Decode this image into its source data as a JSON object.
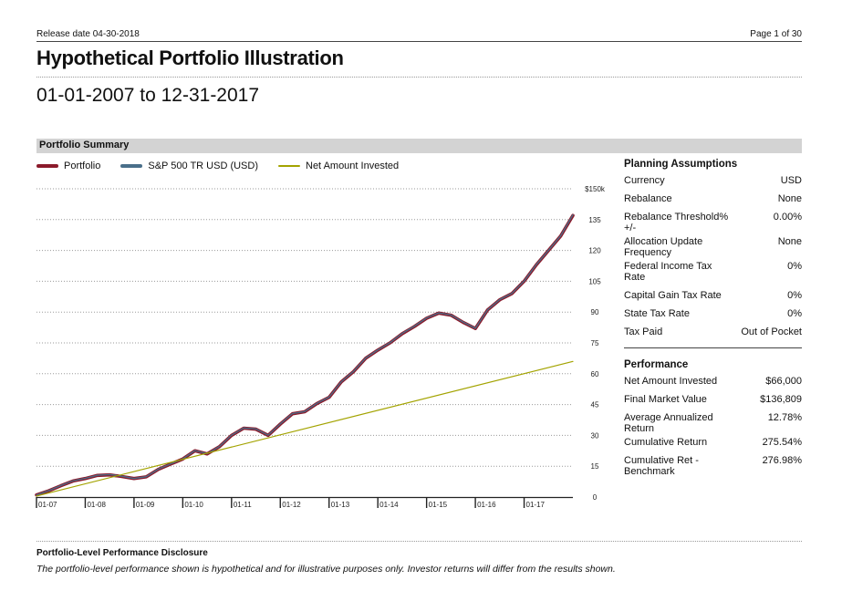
{
  "header": {
    "release": "Release date 04-30-2018",
    "page": "Page 1 of 30"
  },
  "title": "Hypothetical Portfolio Illustration",
  "subtitle": "01-01-2007 to 12-31-2017",
  "section_title": "Portfolio Summary",
  "colors": {
    "portfolio": "#8b1a2b",
    "benchmark": "#4a6f8a",
    "invested": "#a3a300",
    "section_bg": "#d3d3d3"
  },
  "legend": [
    {
      "label": "Portfolio"
    },
    {
      "label": "S&P 500 TR USD (USD)"
    },
    {
      "label": "Net Amount Invested"
    }
  ],
  "chart_data": {
    "type": "line",
    "x_tick_labels": [
      "01-07",
      "01-08",
      "01-09",
      "01-10",
      "01-11",
      "01-12",
      "01-13",
      "01-14",
      "01-15",
      "01-16",
      "01-17"
    ],
    "y_tick_labels": [
      "$150k",
      "135",
      "120",
      "105",
      "90",
      "75",
      "60",
      "45",
      "30",
      "15",
      "0"
    ],
    "ylim": [
      0,
      150
    ],
    "x_range": [
      2007.0,
      2018.0
    ],
    "series": [
      {
        "name": "Portfolio",
        "points": [
          [
            2007.0,
            1.0
          ],
          [
            2007.25,
            3.0
          ],
          [
            2007.5,
            5.5
          ],
          [
            2007.75,
            7.8
          ],
          [
            2008.0,
            9.0
          ],
          [
            2008.25,
            10.5
          ],
          [
            2008.5,
            10.8
          ],
          [
            2008.75,
            10.0
          ],
          [
            2009.0,
            9.0
          ],
          [
            2009.25,
            9.8
          ],
          [
            2009.5,
            13.5
          ],
          [
            2009.75,
            16.0
          ],
          [
            2010.0,
            18.5
          ],
          [
            2010.25,
            22.5
          ],
          [
            2010.5,
            21.0
          ],
          [
            2010.75,
            24.5
          ],
          [
            2011.0,
            30.0
          ],
          [
            2011.25,
            33.5
          ],
          [
            2011.5,
            33.0
          ],
          [
            2011.75,
            30.0
          ],
          [
            2012.0,
            35.5
          ],
          [
            2012.25,
            40.5
          ],
          [
            2012.5,
            41.5
          ],
          [
            2012.75,
            45.5
          ],
          [
            2013.0,
            48.5
          ],
          [
            2013.25,
            56.0
          ],
          [
            2013.5,
            61.0
          ],
          [
            2013.75,
            67.5
          ],
          [
            2014.0,
            71.5
          ],
          [
            2014.25,
            75.0
          ],
          [
            2014.5,
            79.5
          ],
          [
            2014.75,
            83.0
          ],
          [
            2015.0,
            87.0
          ],
          [
            2015.25,
            89.5
          ],
          [
            2015.5,
            88.5
          ],
          [
            2015.75,
            85.0
          ],
          [
            2016.0,
            82.0
          ],
          [
            2016.25,
            91.0
          ],
          [
            2016.5,
            96.0
          ],
          [
            2016.75,
            99.0
          ],
          [
            2017.0,
            105.0
          ],
          [
            2017.25,
            113.0
          ],
          [
            2017.5,
            120.0
          ],
          [
            2017.75,
            127.0
          ],
          [
            2018.0,
            137.0
          ]
        ]
      },
      {
        "name": "S&P 500 TR USD (USD)",
        "points": [
          [
            2007.0,
            1.0
          ],
          [
            2007.25,
            3.1
          ],
          [
            2007.5,
            5.6
          ],
          [
            2007.75,
            7.9
          ],
          [
            2008.0,
            9.1
          ],
          [
            2008.25,
            10.6
          ],
          [
            2008.5,
            10.9
          ],
          [
            2008.75,
            10.1
          ],
          [
            2009.0,
            9.0
          ],
          [
            2009.25,
            9.9
          ],
          [
            2009.5,
            13.6
          ],
          [
            2009.75,
            16.1
          ],
          [
            2010.0,
            18.6
          ],
          [
            2010.25,
            22.6
          ],
          [
            2010.5,
            21.1
          ],
          [
            2010.75,
            24.6
          ],
          [
            2011.0,
            30.1
          ],
          [
            2011.25,
            33.6
          ],
          [
            2011.5,
            33.1
          ],
          [
            2011.75,
            30.1
          ],
          [
            2012.0,
            35.6
          ],
          [
            2012.25,
            40.6
          ],
          [
            2012.5,
            41.6
          ],
          [
            2012.75,
            45.6
          ],
          [
            2013.0,
            48.6
          ],
          [
            2013.25,
            56.1
          ],
          [
            2013.5,
            61.1
          ],
          [
            2013.75,
            67.6
          ],
          [
            2014.0,
            71.6
          ],
          [
            2014.25,
            75.1
          ],
          [
            2014.5,
            79.6
          ],
          [
            2014.75,
            83.1
          ],
          [
            2015.0,
            87.1
          ],
          [
            2015.25,
            89.6
          ],
          [
            2015.5,
            88.6
          ],
          [
            2015.75,
            85.1
          ],
          [
            2016.0,
            82.1
          ],
          [
            2016.25,
            91.1
          ],
          [
            2016.5,
            96.1
          ],
          [
            2016.75,
            99.1
          ],
          [
            2017.0,
            105.1
          ],
          [
            2017.25,
            113.1
          ],
          [
            2017.5,
            120.1
          ],
          [
            2017.75,
            127.1
          ],
          [
            2018.0,
            137.3
          ]
        ]
      },
      {
        "name": "Net Amount Invested",
        "points": [
          [
            2007.0,
            0.5
          ],
          [
            2018.0,
            66.0
          ]
        ]
      }
    ]
  },
  "planning": {
    "title": "Planning Assumptions",
    "rows": [
      {
        "k": "Currency",
        "v": "USD"
      },
      {
        "k": "Rebalance",
        "v": "None"
      },
      {
        "k": "Rebalance Threshold% +/-",
        "v": "0.00%"
      },
      {
        "k": "Allocation Update Frequency",
        "v": "None"
      },
      {
        "k": "Federal Income Tax Rate",
        "v": "0%"
      },
      {
        "k": "Capital Gain Tax Rate",
        "v": "0%"
      },
      {
        "k": "State Tax Rate",
        "v": "0%"
      },
      {
        "k": "Tax Paid",
        "v": "Out of Pocket"
      }
    ]
  },
  "performance": {
    "title": "Performance",
    "rows": [
      {
        "k": "Net Amount Invested",
        "v": "$66,000"
      },
      {
        "k": "Final Market Value",
        "v": "$136,809"
      },
      {
        "k": "Average Annualized Return",
        "v": "12.78%"
      },
      {
        "k": "Cumulative Return",
        "v": "275.54%"
      },
      {
        "k": "Cumulative Ret - Benchmark",
        "v": "276.98%"
      }
    ]
  },
  "disclosure": {
    "title": "Portfolio-Level Performance Disclosure",
    "text": "The portfolio-level performance shown is hypothetical and for illustrative purposes only. Investor returns will differ from the results shown."
  }
}
